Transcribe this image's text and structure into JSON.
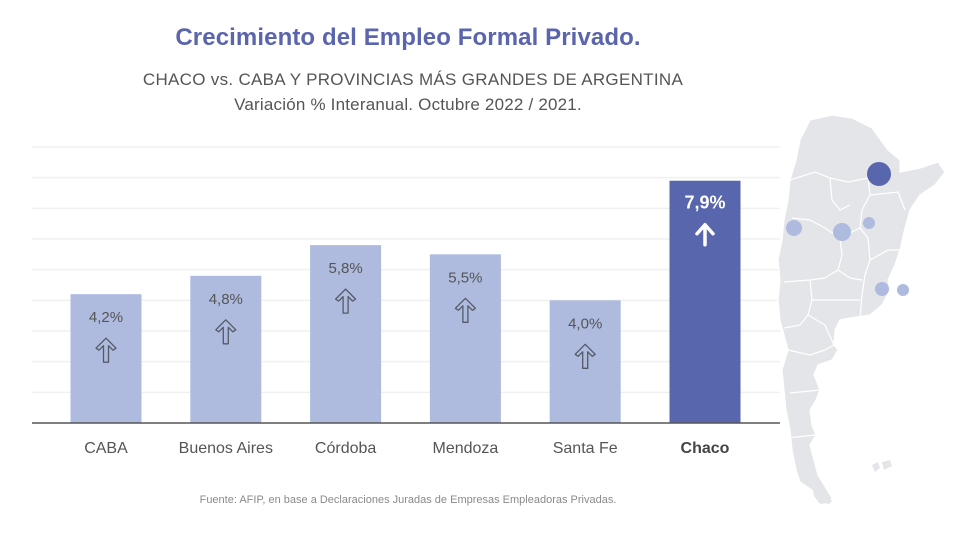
{
  "header": {
    "title": "Crecimiento del Empleo Formal Privado.",
    "subtitle": "CHACO vs. CABA Y PROVINCIAS MÁS GRANDES DE ARGENTINA",
    "subtitle2": "Variación % Interanual. Octubre 2022 / 2021."
  },
  "source": "Fuente: AFIP, en base a Declaraciones Juradas de Empresas Empleadoras Privadas.",
  "colors": {
    "title": "#5b65ad",
    "bar_default": "#aebbdf",
    "bar_highlight": "#5866ad",
    "label_default": "#555555",
    "label_highlight": "#ffffff",
    "grid": "#f0f0f0",
    "axis": "#555555",
    "map_fill": "#e4e5e8",
    "map_border": "#ffffff"
  },
  "chart_data": {
    "type": "bar",
    "title": "Crecimiento del Empleo Formal Privado.",
    "subtitle": "CHACO vs. CABA Y PROVINCIAS MÁS GRANDES DE ARGENTINA — Variación % Interanual. Octubre 2022 / 2021.",
    "xlabel": "",
    "ylabel": "",
    "categories": [
      "CABA",
      "Buenos Aires",
      "Córdoba",
      "Mendoza",
      "Santa Fe",
      "Chaco"
    ],
    "values": [
      4.2,
      4.8,
      5.8,
      5.5,
      4.0,
      7.9
    ],
    "data_labels": [
      "4,2%",
      "4,8%",
      "5,8%",
      "5,5%",
      "4,0%",
      "7,9%"
    ],
    "highlight": "Chaco",
    "ylim": [
      0,
      9
    ],
    "grid": true,
    "y_ticks_shown": false,
    "arrow_icon": "up-arrow",
    "legend": "none"
  },
  "map": {
    "name": "Argentina",
    "markers": [
      {
        "province": "Chaco",
        "highlight": true
      },
      {
        "province": "Mendoza",
        "highlight": false
      },
      {
        "province": "Córdoba",
        "highlight": false
      },
      {
        "province": "Santa Fe",
        "highlight": false
      },
      {
        "province": "Buenos Aires",
        "highlight": false
      },
      {
        "province": "CABA",
        "highlight": false
      }
    ]
  }
}
